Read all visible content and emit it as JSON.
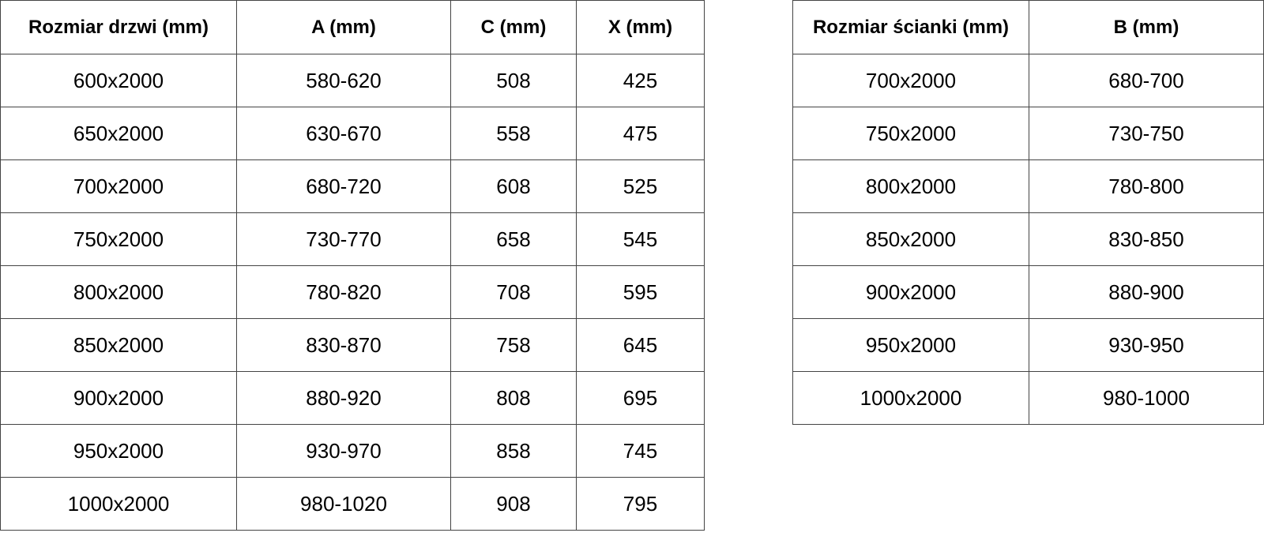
{
  "doors_table": {
    "headers": [
      "Rozmiar drzwi (mm)",
      "A (mm)",
      "C (mm)",
      "X (mm)"
    ],
    "rows": [
      [
        "600x2000",
        "580-620",
        "508",
        "425"
      ],
      [
        "650x2000",
        "630-670",
        "558",
        "475"
      ],
      [
        "700x2000",
        "680-720",
        "608",
        "525"
      ],
      [
        "750x2000",
        "730-770",
        "658",
        "545"
      ],
      [
        "800x2000",
        "780-820",
        "708",
        "595"
      ],
      [
        "850x2000",
        "830-870",
        "758",
        "645"
      ],
      [
        "900x2000",
        "880-920",
        "808",
        "695"
      ],
      [
        "950x2000",
        "930-970",
        "858",
        "745"
      ],
      [
        "1000x2000",
        "980-1020",
        "908",
        "795"
      ]
    ]
  },
  "wall_table": {
    "headers": [
      "Rozmiar ścianki (mm)",
      "B (mm)"
    ],
    "rows": [
      [
        "700x2000",
        "680-700"
      ],
      [
        "750x2000",
        "730-750"
      ],
      [
        "800x2000",
        "780-800"
      ],
      [
        "850x2000",
        "830-850"
      ],
      [
        "900x2000",
        "880-900"
      ],
      [
        "950x2000",
        "930-950"
      ],
      [
        "1000x2000",
        "980-1000"
      ]
    ]
  }
}
